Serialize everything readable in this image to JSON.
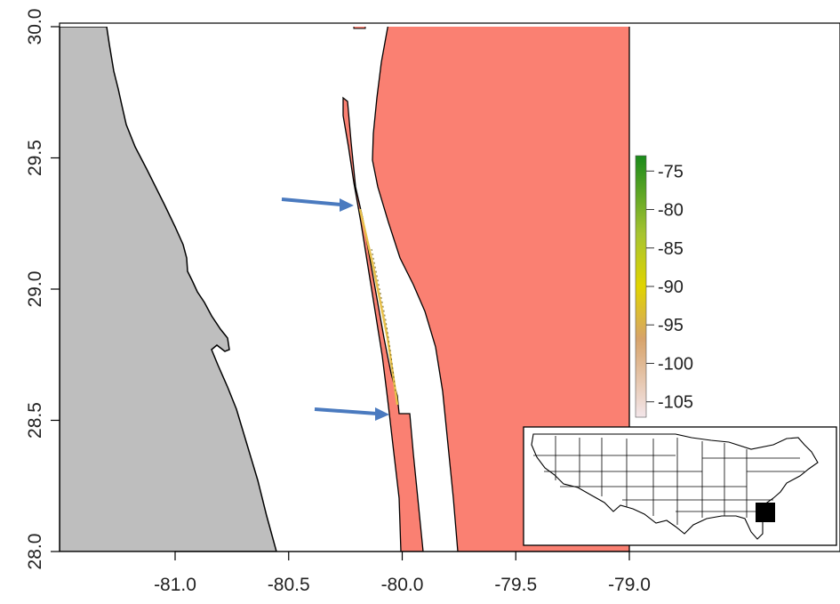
{
  "chart_data": {
    "type": "map",
    "xlim": [
      -81.5,
      -78.6
    ],
    "ylim": [
      28.0,
      30.0
    ],
    "x_ticks": [
      -81.0,
      -80.5,
      -80.0,
      -79.5,
      -79.0
    ],
    "x_tick_labels": [
      "-81.0",
      "-80.5",
      "-80.0",
      "-79.5",
      "-79.0"
    ],
    "y_ticks": [
      28.0,
      28.5,
      29.0,
      29.5,
      30.0
    ],
    "y_tick_labels": [
      "28.0",
      "28.5",
      "29.0",
      "29.5",
      "30.0"
    ],
    "legend": {
      "placement": "right",
      "range": [
        -107,
        -73
      ],
      "ticks": [
        -75,
        -80,
        -85,
        -90,
        -95,
        -100,
        -105
      ],
      "tick_labels": [
        "-75",
        "-80",
        "-85",
        "-90",
        "-95",
        "-100",
        "-105"
      ],
      "colors": {
        "high": "#1a8a1a",
        "mid": "#e0d400",
        "low": "#f3e6ea"
      }
    },
    "fill_colors": {
      "land": "#bebebe",
      "zone": "#fa8072",
      "water": "#ffffff",
      "arrow": "#4a7abf"
    },
    "inset": {
      "description_shown": false,
      "placement": "bottom-right"
    }
  }
}
